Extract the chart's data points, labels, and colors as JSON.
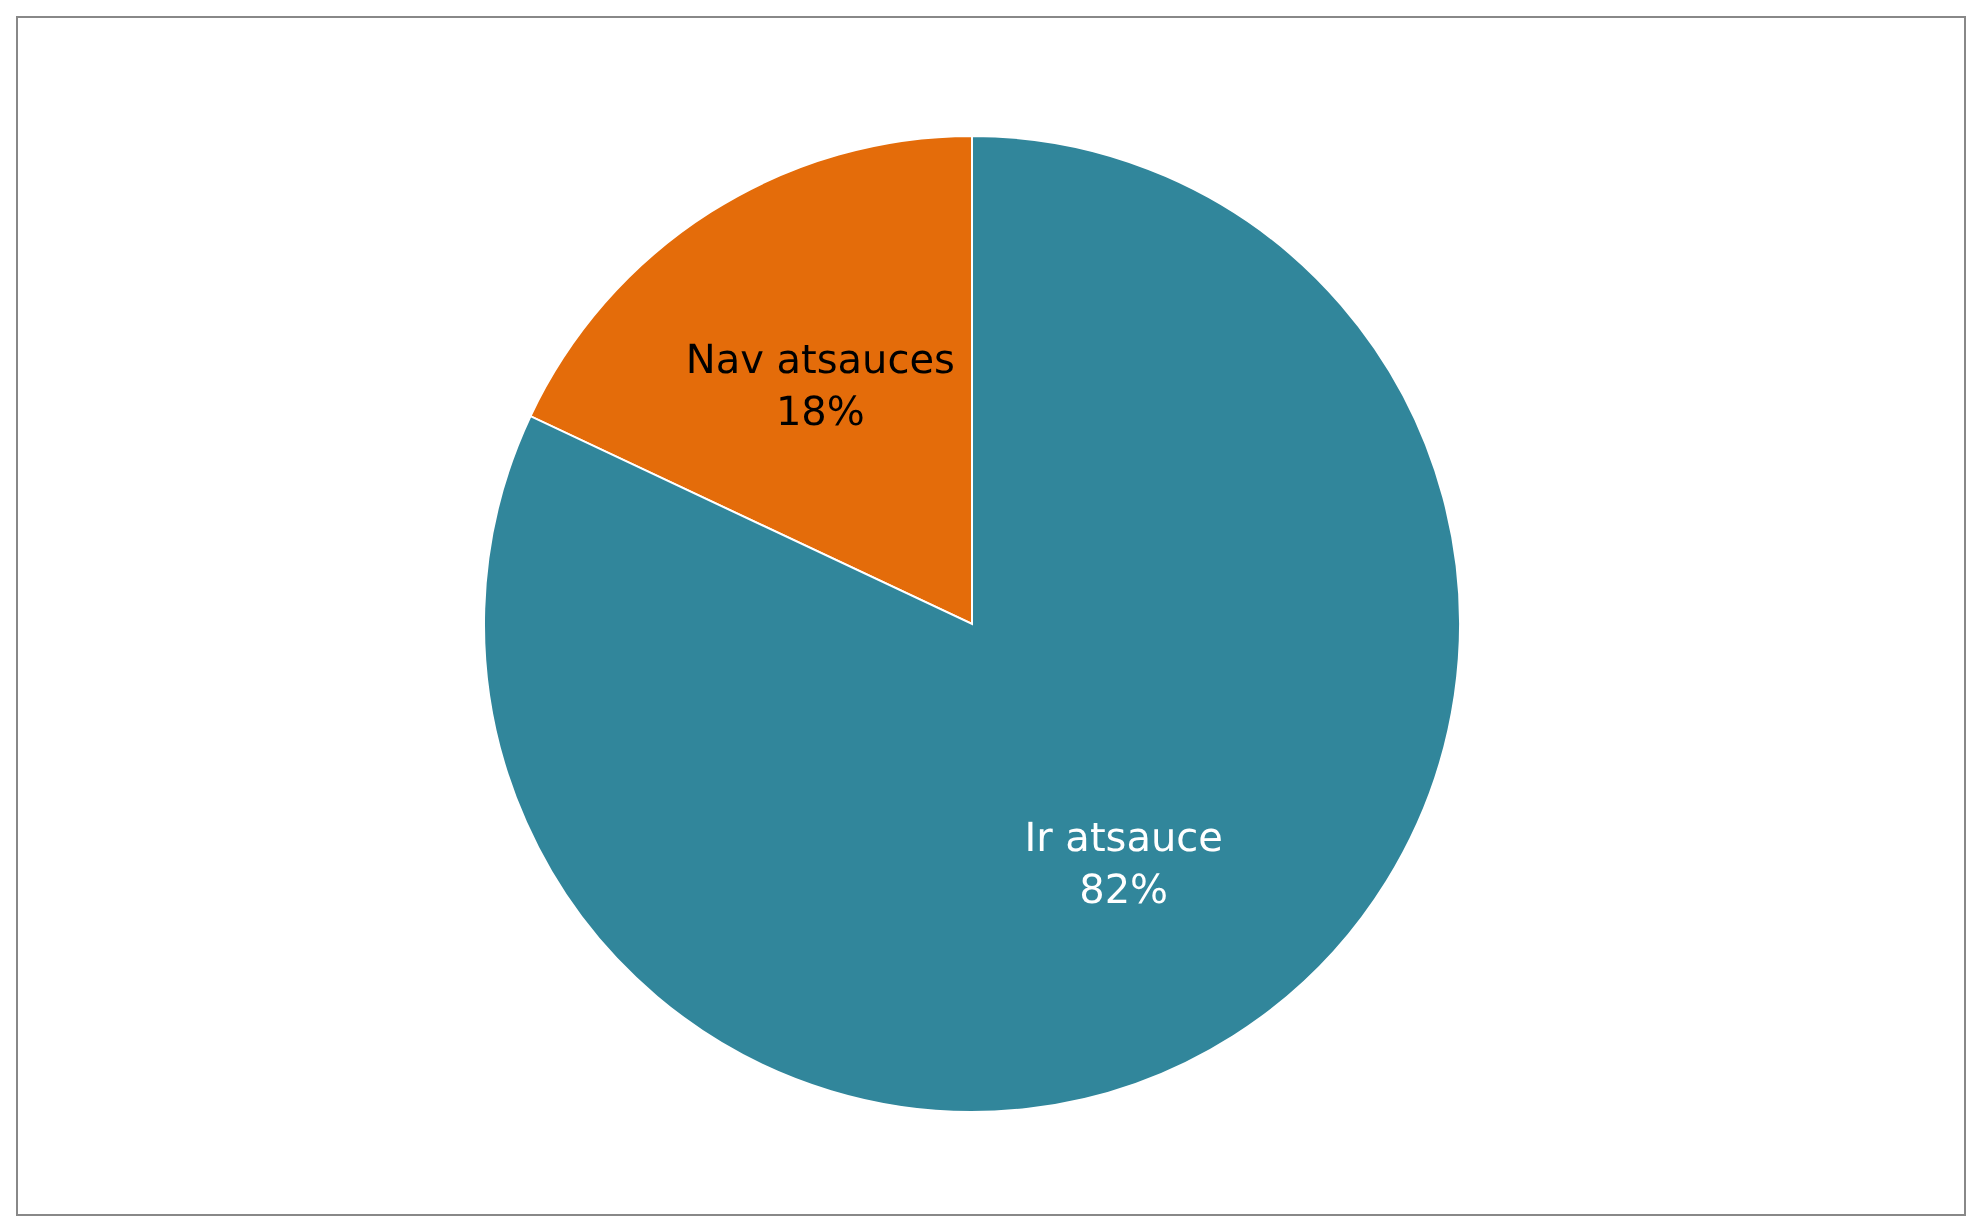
{
  "chart_data": {
    "type": "pie",
    "categories": [
      "Nav atsauces",
      "Ir atsauce"
    ],
    "values": [
      18,
      82
    ],
    "colors": [
      "#e46c0a",
      "#31869b"
    ],
    "value_labels": [
      "18%",
      "82%"
    ]
  }
}
